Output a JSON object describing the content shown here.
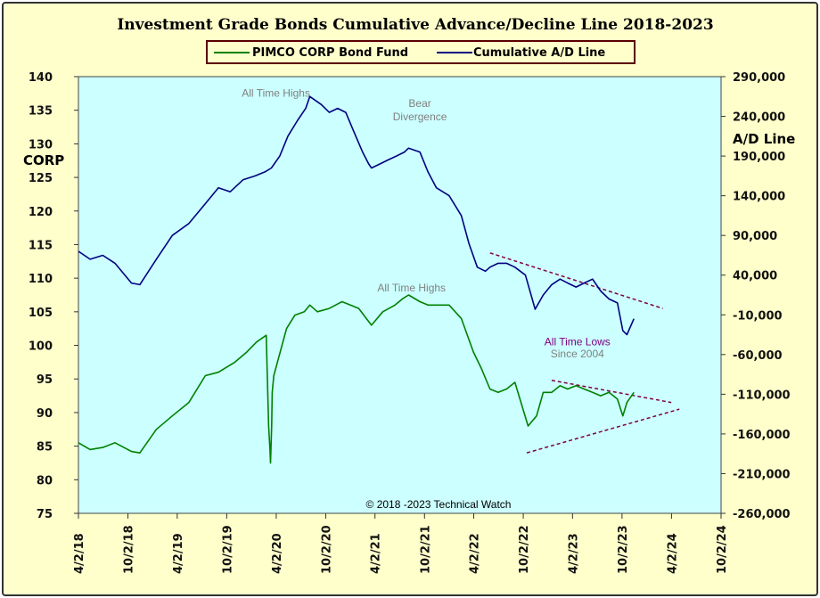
{
  "chart_data": {
    "type": "line",
    "title": "Investment Grade Bonds Cumulative Advance/Decline Line 2018-2023",
    "ylabel_left": "CORP",
    "ylabel_right": "A/D Line",
    "footer": "© 2018 -2023 Technical Watch",
    "x_tick_labels": [
      "4/2/18",
      "10/2/18",
      "4/2/19",
      "10/2/19",
      "4/2/20",
      "10/2/20",
      "4/2/21",
      "10/2/21",
      "4/2/22",
      "10/2/22",
      "4/2/23",
      "10/2/23",
      "4/2/24",
      "10/2/24"
    ],
    "left_ticks": [
      "140",
      "135",
      "130",
      "125",
      "120",
      "115",
      "110",
      "105",
      "100",
      "95",
      "90",
      "85",
      "80",
      "75"
    ],
    "right_ticks": [
      "290,000",
      "240,000",
      "190,000",
      "140,000",
      "90,000",
      "40,000",
      "-10,000",
      "-60,000",
      "-110,000",
      "-160,000",
      "-210,000",
      "-260,000"
    ],
    "ylim_left": [
      75,
      140
    ],
    "ylim_right": [
      -260000,
      290000
    ],
    "legend_position": "top-center",
    "grid": false,
    "colors": {
      "plot_background": "#ccffff",
      "frame_background": "#ffffcc",
      "corp": "#008000",
      "ad": "#000080",
      "trendline": "#800040",
      "annotation_gray": "#808080",
      "annotation_purple": "#800080"
    },
    "series": [
      {
        "name": "PIMCO CORP Bond Fund",
        "axis": "left",
        "x": [
          "2018-04-02",
          "2018-05-15",
          "2018-07-01",
          "2018-08-15",
          "2018-10-15",
          "2018-11-15",
          "2019-01-15",
          "2019-03-15",
          "2019-05-15",
          "2019-07-15",
          "2019-09-01",
          "2019-11-01",
          "2019-12-15",
          "2020-01-20",
          "2020-02-25",
          "2020-03-05",
          "2020-03-10",
          "2020-03-12",
          "2020-03-16",
          "2020-03-18",
          "2020-03-24",
          "2020-04-10",
          "2020-05-10",
          "2020-06-10",
          "2020-07-15",
          "2020-08-04",
          "2020-09-01",
          "2020-10-15",
          "2020-12-01",
          "2021-01-01",
          "2021-02-01",
          "2021-03-01",
          "2021-03-20",
          "2021-05-01",
          "2021-06-15",
          "2021-07-15",
          "2021-08-04",
          "2021-09-15",
          "2021-10-15",
          "2021-11-15",
          "2022-01-01",
          "2022-02-15",
          "2022-04-01",
          "2022-05-01",
          "2022-06-01",
          "2022-07-01",
          "2022-08-01",
          "2022-09-01",
          "2022-10-20",
          "2022-11-20",
          "2022-12-15",
          "2023-01-15",
          "2023-02-15",
          "2023-03-15",
          "2023-04-15",
          "2023-05-15",
          "2023-06-15",
          "2023-07-15",
          "2023-08-15",
          "2023-09-15",
          "2023-10-05",
          "2023-10-20",
          "2023-11-15"
        ],
        "values": [
          85.5,
          84.5,
          84.8,
          85.5,
          84.2,
          84.0,
          87.5,
          89.5,
          91.5,
          95.5,
          96.0,
          97.5,
          99.0,
          100.5,
          101.5,
          88.0,
          84.5,
          82.5,
          88.0,
          93.0,
          95.5,
          98.0,
          102.5,
          104.5,
          105.0,
          106.0,
          105.0,
          105.5,
          106.5,
          106.0,
          105.5,
          104.0,
          103.0,
          105.0,
          106.0,
          107.0,
          107.5,
          106.5,
          106.0,
          106.0,
          106.0,
          104.0,
          99.0,
          96.5,
          93.5,
          93.0,
          93.5,
          94.5,
          88.0,
          89.5,
          93.0,
          93.0,
          94.0,
          93.5,
          94.0,
          93.5,
          93.0,
          92.5,
          93.0,
          92.0,
          89.5,
          91.5,
          93.0
        ]
      },
      {
        "name": "Cumulative A/D Line",
        "axis": "right",
        "x": [
          "2018-04-02",
          "2018-05-15",
          "2018-07-01",
          "2018-08-15",
          "2018-10-15",
          "2018-11-15",
          "2019-01-15",
          "2019-03-15",
          "2019-05-15",
          "2019-07-15",
          "2019-09-01",
          "2019-10-15",
          "2019-12-01",
          "2020-01-15",
          "2020-02-20",
          "2020-03-15",
          "2020-04-15",
          "2020-05-15",
          "2020-06-20",
          "2020-07-20",
          "2020-08-04",
          "2020-09-15",
          "2020-10-15",
          "2020-11-15",
          "2020-12-15",
          "2021-01-15",
          "2021-02-15",
          "2021-03-10",
          "2021-03-20",
          "2021-04-20",
          "2021-05-20",
          "2021-06-20",
          "2021-07-20",
          "2021-08-04",
          "2021-09-15",
          "2021-10-15",
          "2021-11-15",
          "2022-01-01",
          "2022-02-15",
          "2022-03-15",
          "2022-04-15",
          "2022-05-15",
          "2022-06-01",
          "2022-07-01",
          "2022-08-01",
          "2022-09-01",
          "2022-10-10",
          "2022-11-15",
          "2022-12-15",
          "2023-01-15",
          "2023-02-15",
          "2023-03-15",
          "2023-04-15",
          "2023-05-15",
          "2023-06-15",
          "2023-07-15",
          "2023-08-15",
          "2023-09-15",
          "2023-10-05",
          "2023-10-20",
          "2023-11-15"
        ],
        "values": [
          70000,
          60000,
          65000,
          55000,
          30000,
          28000,
          60000,
          90000,
          105000,
          130000,
          150000,
          145000,
          160000,
          165000,
          170000,
          175000,
          190000,
          215000,
          235000,
          250000,
          265000,
          255000,
          245000,
          250000,
          245000,
          220000,
          195000,
          180000,
          175000,
          180000,
          185000,
          190000,
          195000,
          200000,
          195000,
          170000,
          150000,
          140000,
          115000,
          80000,
          50000,
          45000,
          50000,
          55000,
          55000,
          50000,
          40000,
          -3000,
          15000,
          28000,
          35000,
          30000,
          25000,
          30000,
          35000,
          20000,
          10000,
          5000,
          -30000,
          -35000,
          -15000
        ]
      }
    ],
    "trendlines": [
      {
        "axis": "right",
        "x": [
          "2022-06-01",
          "2024-03-01"
        ],
        "values": [
          68000,
          -2000
        ]
      },
      {
        "axis": "left",
        "x": [
          "2023-01-15",
          "2024-04-01"
        ],
        "values": [
          94.8,
          91.5
        ]
      },
      {
        "axis": "left",
        "x": [
          "2022-10-15",
          "2024-05-01"
        ],
        "values": [
          84.0,
          90.5
        ]
      }
    ],
    "annotations": [
      {
        "text": "All Time Highs",
        "x": "2020-04-01",
        "y": 137.0,
        "axis": "left",
        "color": "#808080"
      },
      {
        "text": "Bear",
        "x": "2021-09-15",
        "y": 135.5,
        "axis": "left",
        "color": "#808080"
      },
      {
        "text": "Divergence",
        "x": "2021-09-15",
        "y": 133.5,
        "axis": "left",
        "color": "#808080"
      },
      {
        "text": "All Time Highs",
        "x": "2021-08-15",
        "y": 108.0,
        "axis": "left",
        "color": "#808080"
      },
      {
        "text": "All Time Lows",
        "x": "2023-04-20",
        "y": 100.0,
        "axis": "left",
        "color": "#800080"
      },
      {
        "text": "Since 2004",
        "x": "2023-04-20",
        "y": 98.2,
        "axis": "left",
        "color": "#808080"
      }
    ]
  }
}
